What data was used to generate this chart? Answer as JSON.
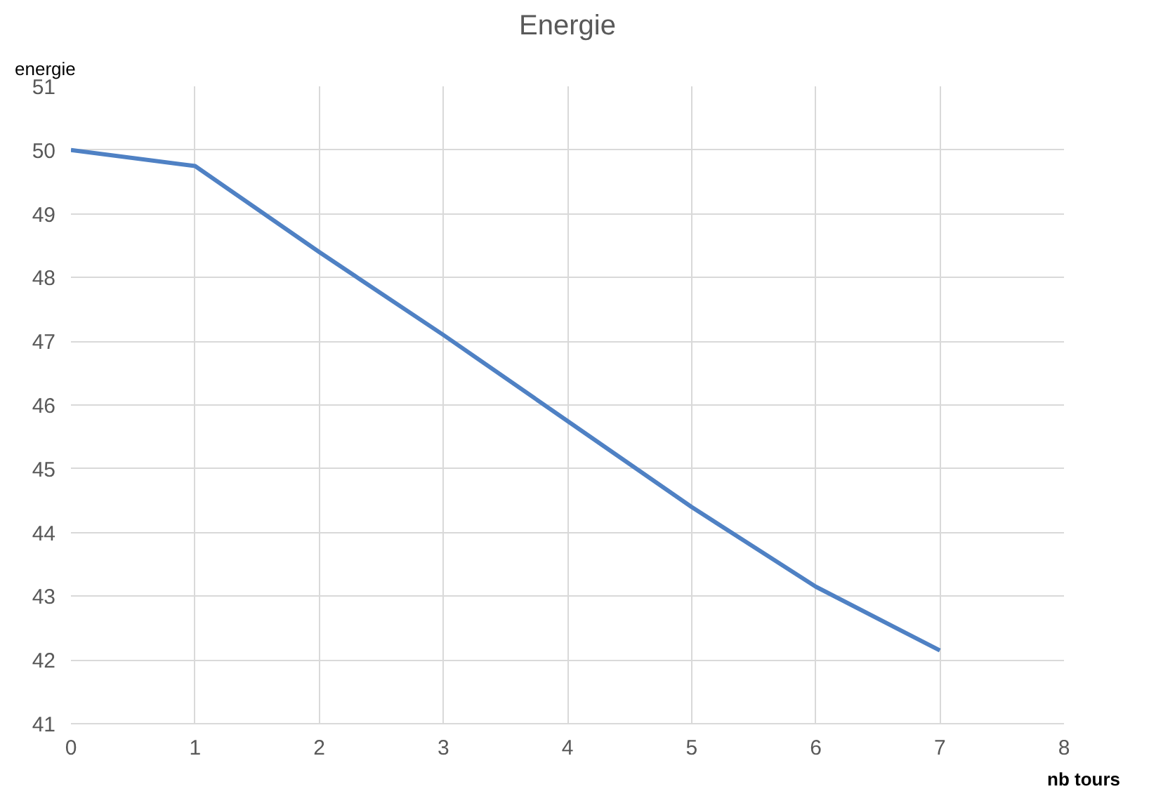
{
  "chart_data": {
    "type": "line",
    "title": "Energie",
    "xlabel": "nb tours",
    "ylabel": "energie",
    "x": [
      0,
      1,
      2,
      3,
      4,
      5,
      6,
      7
    ],
    "series": [
      {
        "color": "#4f81c4",
        "values": [
          50.0,
          49.75,
          48.4,
          47.1,
          45.75,
          44.4,
          43.15,
          42.15
        ]
      }
    ],
    "xlim": [
      0,
      8
    ],
    "xticks": [
      0,
      1,
      2,
      3,
      4,
      5,
      6,
      7,
      8
    ],
    "ylim": [
      41,
      51
    ],
    "yticks": [
      41,
      42,
      43,
      44,
      45,
      46,
      47,
      48,
      49,
      50,
      51
    ],
    "grid": true,
    "marker": "none",
    "line_style": "solid"
  }
}
